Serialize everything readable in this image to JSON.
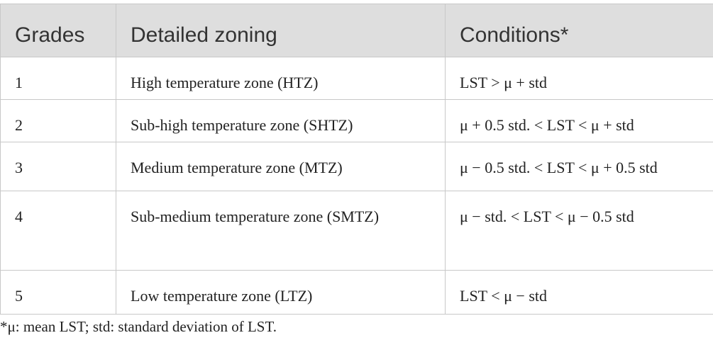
{
  "table": {
    "columns": [
      "Grades",
      "Detailed zoning",
      "Conditions*"
    ],
    "rows": [
      [
        "1",
        "High temperature zone (HTZ)",
        "LST > μ + std"
      ],
      [
        "2",
        "Sub-high temperature zone (SHTZ)",
        "μ + 0.5 std. < LST < μ + std"
      ],
      [
        "3",
        "Medium temperature zone (MTZ)",
        "μ − 0.5 std. < LST < μ + 0.5 std"
      ],
      [
        "4",
        "Sub-medium temperature zone (SMTZ)",
        "μ − std. < LST < μ − 0.5 std"
      ],
      [
        "5",
        "Low temperature zone (LTZ)",
        "LST < μ − std"
      ]
    ]
  },
  "footnote": "*μ: mean LST; std: standard deviation of LST."
}
